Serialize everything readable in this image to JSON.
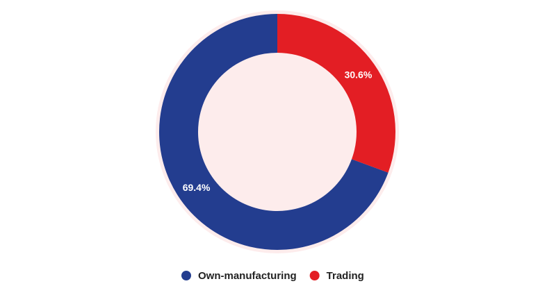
{
  "chart_data": {
    "type": "donut",
    "categories": [
      "Own-manufacturing",
      "Trading"
    ],
    "values": [
      69.4,
      30.6
    ],
    "value_labels": [
      "69.4%",
      "30.6%"
    ],
    "colors": [
      "#233d8f",
      "#e31e24"
    ],
    "legend": "bottom"
  }
}
